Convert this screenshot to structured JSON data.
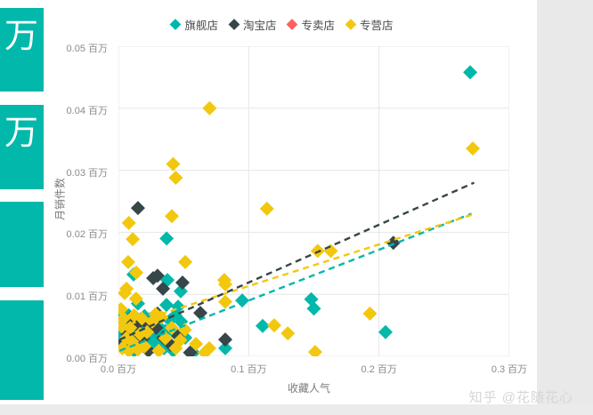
{
  "page": {
    "watermark": "知乎 @花随花心",
    "background": "#FFFFFF",
    "gutter_color": "#E9E9E9"
  },
  "sidebar": {
    "color": "#01B8AA",
    "cards": [
      {
        "visible_text": "万"
      },
      {
        "visible_text": "万"
      },
      {
        "visible_text": ""
      },
      {
        "visible_text": ""
      }
    ]
  },
  "chart_data": {
    "type": "scatter",
    "title": "",
    "xlabel": "收藏人气",
    "ylabel": "月销件数",
    "unit": "百万",
    "xlim": [
      0,
      0.3
    ],
    "ylim": [
      0,
      0.05
    ],
    "grid": true,
    "legend_position": "top-center",
    "x_ticks": [
      {
        "value": 0.0,
        "label": "0.0 百万"
      },
      {
        "value": 0.1,
        "label": "0.1 百万"
      },
      {
        "value": 0.2,
        "label": "0.2 百万"
      },
      {
        "value": 0.3,
        "label": "0.3 百万"
      }
    ],
    "y_ticks": [
      {
        "value": 0.0,
        "label": "0.00 百万"
      },
      {
        "value": 0.01,
        "label": "0.01 百万"
      },
      {
        "value": 0.02,
        "label": "0.02 百万"
      },
      {
        "value": 0.03,
        "label": "0.03 百万"
      },
      {
        "value": 0.04,
        "label": "0.04 百万"
      },
      {
        "value": 0.05,
        "label": "0.05 百万"
      }
    ],
    "series": [
      {
        "name": "旗舰店",
        "color": "#01B8AA",
        "trend": {
          "x1": 0.001,
          "y1": 0.0009,
          "x2": 0.271,
          "y2": 0.023
        },
        "points": [
          [
            0.27,
            0.0458
          ],
          [
            0.037,
            0.019
          ],
          [
            0.0116,
            0.0132
          ],
          [
            0.0376,
            0.0123
          ],
          [
            0.0478,
            0.0105
          ],
          [
            0.015,
            0.0085
          ],
          [
            0.0369,
            0.0083
          ],
          [
            0.0458,
            0.008
          ],
          [
            0.095,
            0.009
          ],
          [
            0.148,
            0.0092
          ],
          [
            0.15,
            0.0077
          ],
          [
            0.1107,
            0.0049
          ],
          [
            0.205,
            0.0039
          ],
          [
            0.0513,
            0.003
          ],
          [
            0.082,
            0.0013
          ],
          [
            0.0574,
            0.0006
          ],
          [
            0.0437,
            0.0066
          ],
          [
            0.002,
            0.0068
          ],
          [
            0.004,
            0.0052
          ],
          [
            0.0065,
            0.004
          ],
          [
            0.008,
            0.0066
          ],
          [
            0.01,
            0.003
          ],
          [
            0.013,
            0.0056
          ],
          [
            0.016,
            0.0021
          ],
          [
            0.018,
            0.0046
          ],
          [
            0.021,
            0.0035
          ],
          [
            0.024,
            0.006
          ],
          [
            0.027,
            0.0016
          ],
          [
            0.03,
            0.005
          ],
          [
            0.033,
            0.0026
          ],
          [
            0.036,
            0.0041
          ],
          [
            0.042,
            0.0009
          ],
          [
            0.048,
            0.0056
          ],
          [
            0.012,
            0.0009
          ],
          [
            0.005,
            0.0016
          ],
          [
            0.026,
            0.0043
          ],
          [
            0.035,
            0.0013
          ],
          [
            0.0015,
            0.0035
          ],
          [
            0.009,
            0.005
          ],
          [
            0.02,
            0.0065
          ],
          [
            0.0235,
            0.0025
          ],
          [
            0.0145,
            0.004
          ],
          [
            0.0295,
            0.0033
          ],
          [
            0.0065,
            0.0022
          ],
          [
            0.017,
            0.006
          ],
          [
            0.0395,
            0.0058
          ],
          [
            0.044,
            0.0036
          ]
        ]
      },
      {
        "name": "淘宝店",
        "color": "#374649",
        "trend": {
          "x1": 0.001,
          "y1": 0.0027,
          "x2": 0.273,
          "y2": 0.028
        },
        "points": [
          [
            0.015,
            0.0239
          ],
          [
            0.211,
            0.0183
          ],
          [
            0.03,
            0.013
          ],
          [
            0.0267,
            0.0126
          ],
          [
            0.0492,
            0.0119
          ],
          [
            0.0342,
            0.0109
          ],
          [
            0.03,
            0.0069
          ],
          [
            0.0629,
            0.007
          ],
          [
            0.082,
            0.0027
          ],
          [
            0.003,
            0.0021
          ],
          [
            0.007,
            0.0036
          ],
          [
            0.01,
            0.0013
          ],
          [
            0.014,
            0.0051
          ],
          [
            0.019,
            0.0029
          ],
          [
            0.023,
            0.0009
          ],
          [
            0.029,
            0.0046
          ],
          [
            0.04,
            0.0019
          ],
          [
            0.046,
            0.0033
          ],
          [
            0.055,
            0.0006
          ],
          [
            0.009,
            0.0061
          ],
          [
            0.0125,
            0.0025
          ],
          [
            0.021,
            0.0055
          ],
          [
            0.0345,
            0.003
          ]
        ]
      },
      {
        "name": "专卖店",
        "color": "#FD625E",
        "trend": null,
        "points": []
      },
      {
        "name": "专营店",
        "color": "#F2C80F",
        "trend": {
          "x1": 0.001,
          "y1": 0.0047,
          "x2": 0.271,
          "y2": 0.0228
        },
        "points": [
          [
            0.07,
            0.04
          ],
          [
            0.272,
            0.0335
          ],
          [
            0.042,
            0.031
          ],
          [
            0.044,
            0.0288
          ],
          [
            0.114,
            0.0238
          ],
          [
            0.041,
            0.0226
          ],
          [
            0.008,
            0.0215
          ],
          [
            0.011,
            0.0189
          ],
          [
            0.0075,
            0.0152
          ],
          [
            0.0513,
            0.0152
          ],
          [
            0.0137,
            0.0135
          ],
          [
            0.153,
            0.017
          ],
          [
            0.163,
            0.017
          ],
          [
            0.0813,
            0.0123
          ],
          [
            0.082,
            0.0116
          ],
          [
            0.0048,
            0.0102
          ],
          [
            0.0062,
            0.0109
          ],
          [
            0.082,
            0.0088
          ],
          [
            0.193,
            0.0069
          ],
          [
            0.1196,
            0.005
          ],
          [
            0.13,
            0.0037
          ],
          [
            0.151,
            0.0007
          ],
          [
            0.0595,
            0.002
          ],
          [
            0.0697,
            0.0013
          ],
          [
            0.0663,
            0.0006
          ],
          [
            0.002,
            0.0076
          ],
          [
            0.004,
            0.0061
          ],
          [
            0.006,
            0.0029
          ],
          [
            0.009,
            0.0046
          ],
          [
            0.012,
            0.0066
          ],
          [
            0.015,
            0.0011
          ],
          [
            0.018,
            0.0061
          ],
          [
            0.022,
            0.0039
          ],
          [
            0.026,
            0.0056
          ],
          [
            0.031,
            0.0009
          ],
          [
            0.036,
            0.0029
          ],
          [
            0.041,
            0.0046
          ],
          [
            0.003,
            0.0013
          ],
          [
            0.008,
            0.0009
          ],
          [
            0.02,
            0.0016
          ],
          [
            0.033,
            0.0063
          ],
          [
            0.044,
            0.0013
          ],
          [
            0.051,
            0.0043
          ],
          [
            0.0025,
            0.0048
          ],
          [
            0.0105,
            0.0024
          ],
          [
            0.0165,
            0.0036
          ],
          [
            0.0285,
            0.0068
          ],
          [
            0.0475,
            0.0026
          ],
          [
            0.0135,
            0.0093
          ]
        ]
      }
    ]
  }
}
